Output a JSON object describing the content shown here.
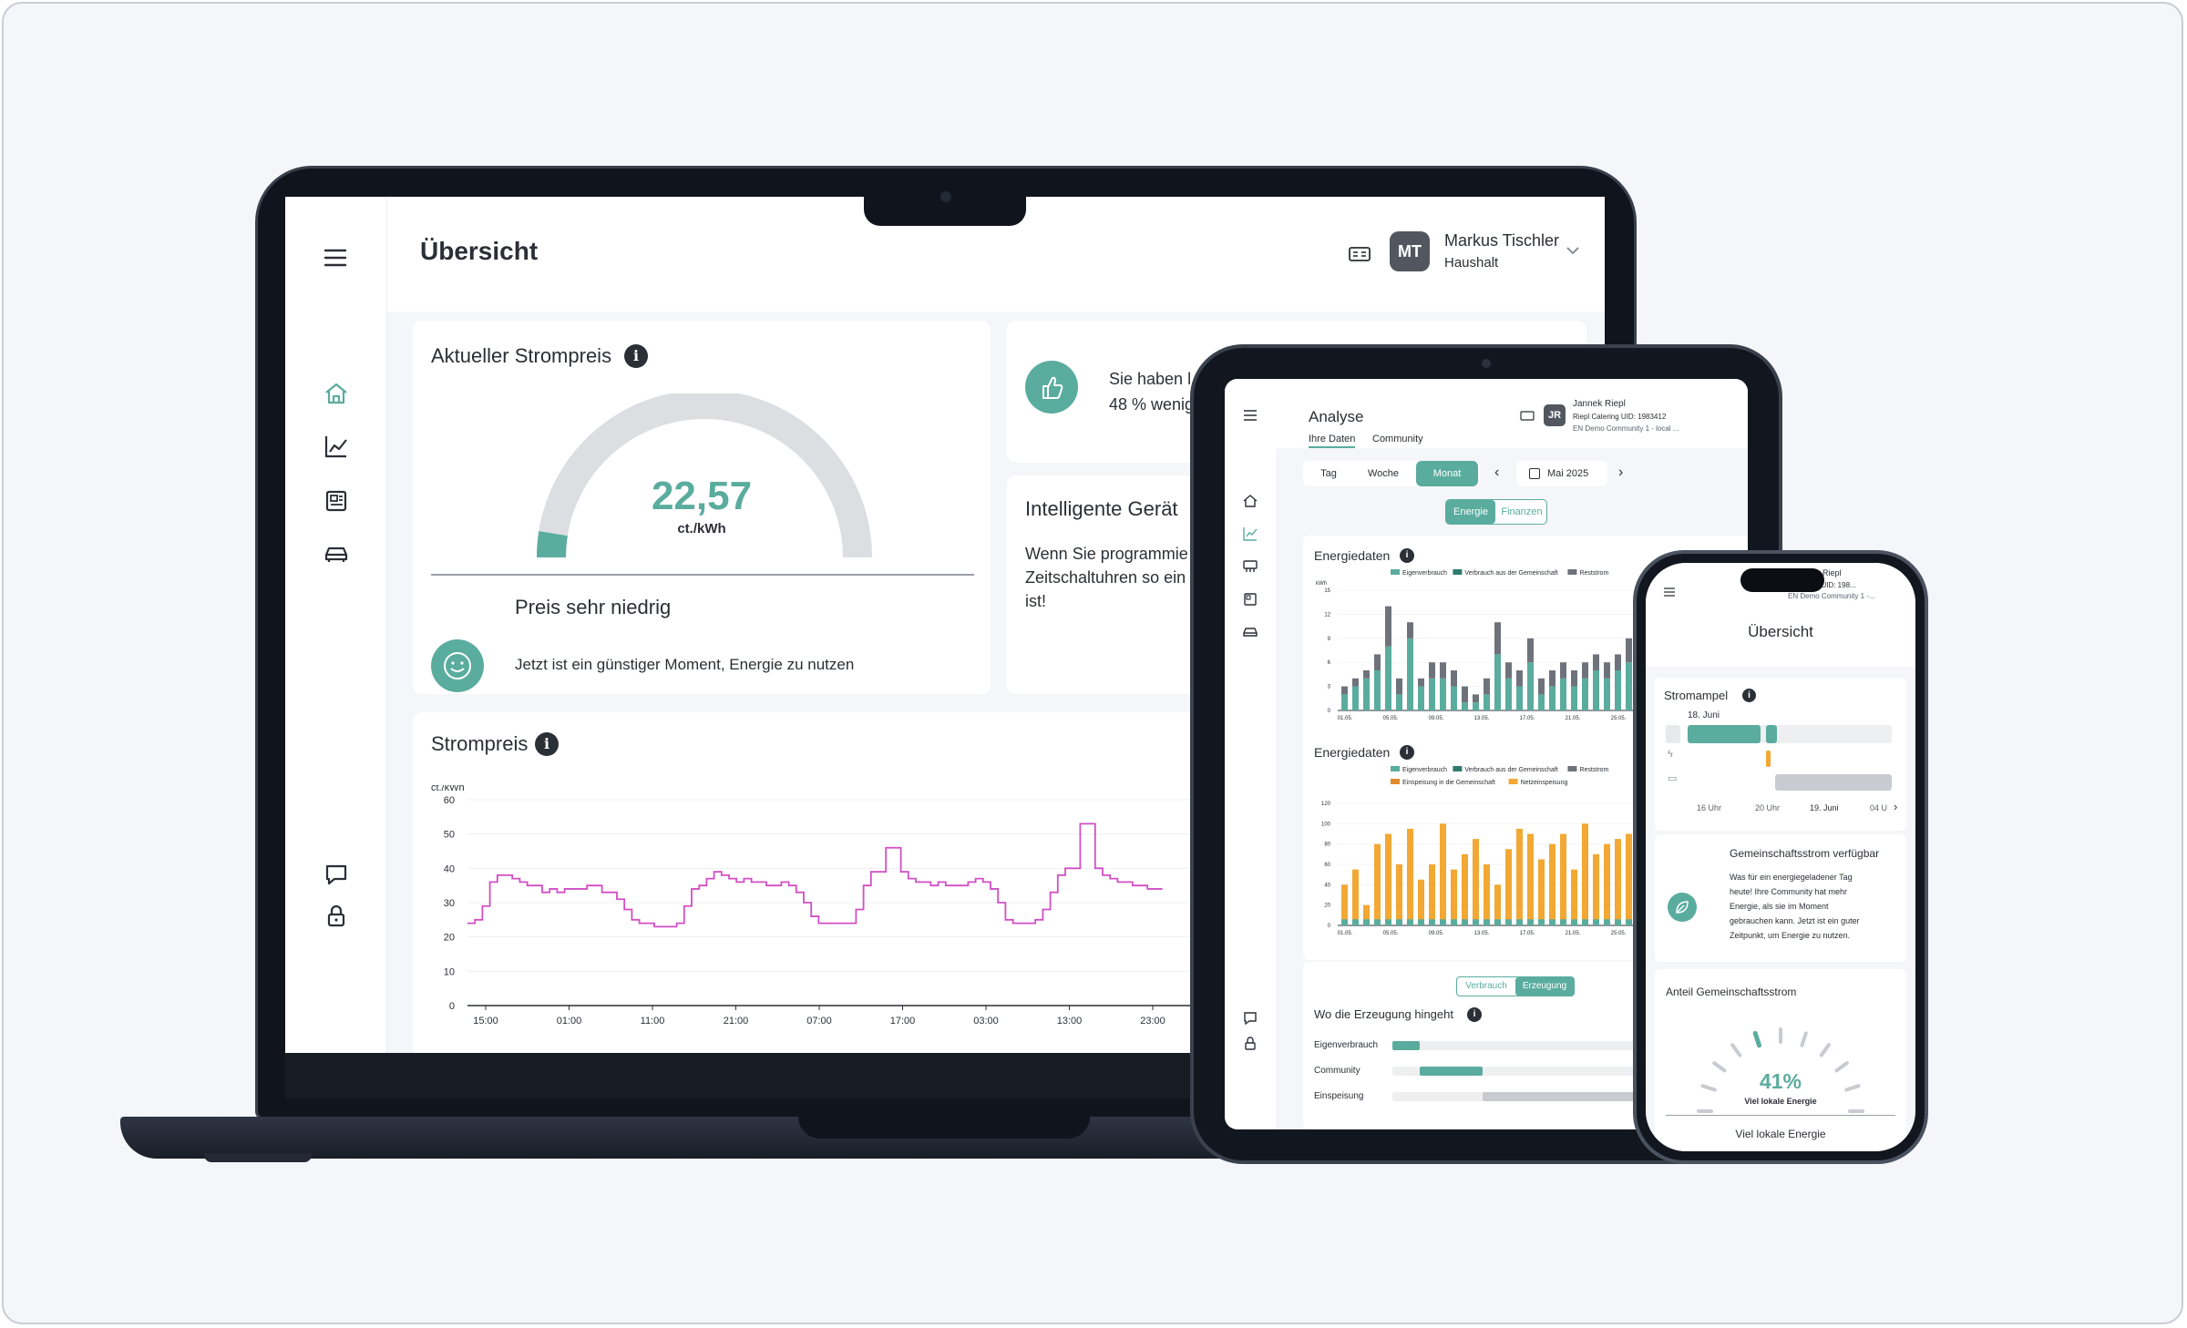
{
  "laptop": {
    "page_title": "Übersicht",
    "user": {
      "initials": "MT",
      "name": "Markus Tischler",
      "role": "Haushalt"
    },
    "price_card": {
      "title": "Aktueller Strompreis",
      "value": "22,57",
      "unit": "ct./kWh",
      "gauge_level": 0.05,
      "status": "Preis sehr niedrig",
      "hint": "Jetzt ist ein günstiger Moment, Energie zu nutzen"
    },
    "savings_card": {
      "line1": "Sie haben l",
      "line2": "48 % wenig"
    },
    "smart_card": {
      "title": "Intelligente Gerät",
      "line1": "Wenn Sie programmie",
      "line2": "Zeitschaltuhren so ein",
      "line3": "ist!"
    },
    "price_chart_card": {
      "title": "Strompreis"
    }
  },
  "tablet": {
    "page_title": "Analyse",
    "user": {
      "initials": "JR",
      "name": "Jannek Riepl",
      "org": "Riepl Catering UID: 1983412",
      "community": "EN Demo Community 1 - local ..."
    },
    "tabs": [
      "Ihre Daten",
      "Community"
    ],
    "periods": [
      "Tag",
      "Woche",
      "Monat"
    ],
    "active_period": "Monat",
    "date": "Mai 2025",
    "toggle": [
      "Energie",
      "Finanzen"
    ],
    "energy1": {
      "title": "Energiedaten"
    },
    "energy2": {
      "title": "Energiedaten"
    },
    "production": {
      "toggle": [
        "Verbrauch",
        "Erzeugung"
      ],
      "title": "Wo die Erzeugung hingeht",
      "rows": [
        {
          "label": "Eigenverbrauch",
          "value": 0.08
        },
        {
          "label": "Community",
          "value": 0.18
        },
        {
          "label": "Einspeisung",
          "value": 0.74
        }
      ]
    }
  },
  "phone": {
    "user_name": "Riepl",
    "org": "Catering UID: 198...",
    "community": "EN Demo Community 1 -...",
    "page_title": "Übersicht",
    "ampel": {
      "title": "Stromampel",
      "date": "18. Juni",
      "ticks": [
        "16 Uhr",
        "20 Uhr",
        "19. Juni",
        "04 U"
      ]
    },
    "community_card": {
      "title": "Gemeinschaftsstrom verfügbar",
      "lines": [
        "Was für ein energiegeladener Tag",
        "heute! Ihre Community hat mehr",
        "Energie, als sie im Moment",
        "gebrauchen kann. Jetzt ist ein guter",
        "Zeitpunkt, um Energie zu nutzen."
      ]
    },
    "share_card": {
      "title": "Anteil Gemeinschaftsstrom",
      "value": "41%",
      "sub": "Viel lokale Energie",
      "footer": "Viel lokale Energie",
      "level": 0.41
    }
  },
  "chart_data": [
    {
      "type": "line",
      "title": "Strompreis",
      "ylabel": "ct./kWh",
      "ylim": [
        0,
        60
      ],
      "yticks": [
        0,
        10,
        20,
        30,
        40,
        50,
        60
      ],
      "xticks": [
        "15:00",
        "01:00",
        "11:00",
        "21:00",
        "07:00",
        "17:00",
        "03:00",
        "13:00",
        "23:00"
      ],
      "series": [
        {
          "values": [
            24,
            25,
            29,
            36,
            38,
            38,
            37,
            36,
            35,
            35,
            33,
            34,
            33,
            34,
            34,
            34,
            35,
            35,
            33,
            33,
            31,
            28,
            25,
            24,
            24,
            23,
            23,
            23,
            24,
            29,
            34,
            35,
            37,
            39,
            38,
            37,
            36,
            37,
            36,
            36,
            35,
            35,
            36,
            35,
            33,
            30,
            26,
            24,
            24,
            24,
            24,
            24,
            28,
            35,
            39,
            39,
            46,
            46,
            39,
            37,
            36,
            36,
            35,
            36,
            35,
            35,
            35,
            36,
            37,
            36,
            34,
            30,
            25,
            24,
            24,
            24,
            25,
            28,
            33,
            38,
            40,
            40,
            53,
            53,
            40,
            38,
            37,
            36,
            36,
            35,
            35,
            34,
            34
          ]
        }
      ],
      "color": "#d14fc4"
    },
    {
      "type": "bar",
      "title": "Energiedaten",
      "ylabel": "kWh",
      "ylim": [
        0,
        15
      ],
      "yticks": [
        0,
        3,
        6,
        9,
        12,
        15
      ],
      "xticks": [
        "01.05.",
        "05.05.",
        "09.05.",
        "13.05.",
        "17.05.",
        "21.05.",
        "25.05."
      ],
      "legend": [
        "Eigenverbrauch",
        "Verbrauch aus der Gemeinschaft",
        "Reststrom"
      ],
      "series": [
        {
          "name": "Eigenverbrauch",
          "values": [
            2,
            3,
            4,
            5,
            8,
            2,
            9,
            3,
            4,
            4,
            3,
            1,
            1,
            2,
            7,
            4,
            3,
            6,
            2,
            3,
            4,
            3,
            4,
            5,
            4,
            5,
            6,
            3,
            4,
            5,
            4,
            3,
            6
          ]
        },
        {
          "name": "Reststrom",
          "values": [
            1,
            1,
            1,
            2,
            5,
            2,
            2,
            1,
            2,
            2,
            2,
            2,
            1,
            2,
            4,
            2,
            2,
            3,
            2,
            2,
            2,
            2,
            2,
            2,
            2,
            2,
            3,
            2,
            2,
            2,
            2,
            3,
            2
          ]
        }
      ]
    },
    {
      "type": "bar",
      "title": "Energiedaten",
      "ylim": [
        0,
        120
      ],
      "yticks": [
        0,
        20,
        40,
        60,
        80,
        100,
        120
      ],
      "xticks": [
        "01.05.",
        "05.05.",
        "09.05.",
        "13.05.",
        "17.05.",
        "21.05.",
        "25.05."
      ],
      "legend": [
        "Eigenverbrauch",
        "Verbrauch aus der Gemeinschaft",
        "Reststrom",
        "Einspeisung in die Gemeinschaft",
        "Netzeinspeisung"
      ],
      "series": [
        {
          "name": "Netzeinspeisung",
          "values": [
            40,
            55,
            20,
            80,
            90,
            60,
            95,
            45,
            60,
            100,
            55,
            70,
            85,
            60,
            40,
            75,
            95,
            90,
            65,
            80,
            90,
            55,
            100,
            70,
            80,
            85,
            90,
            65,
            70,
            80,
            95,
            60,
            75
          ]
        }
      ]
    }
  ],
  "colors": {
    "accent": "#5aac9e",
    "dark": "#52575f",
    "orange": "#f2a833",
    "magenta": "#d14fc4",
    "gauge": "#dcdee2"
  }
}
